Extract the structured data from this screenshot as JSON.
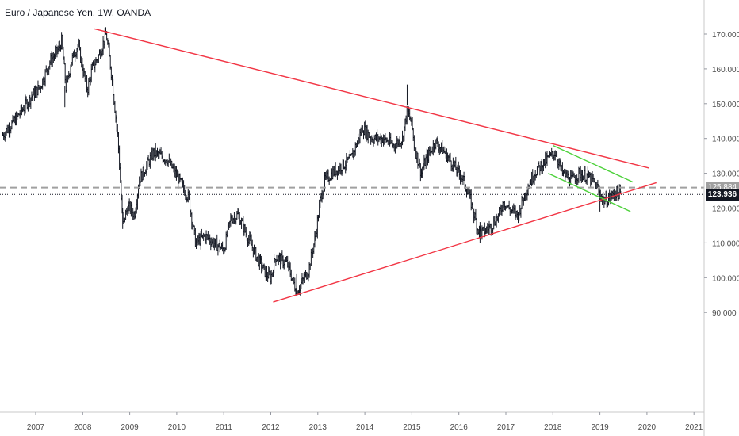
{
  "header": {
    "symbol_title": "Euro / Japanese Yen, 1W, OANDA"
  },
  "price_tags": {
    "dashed_level": "125.884",
    "last_price": "123.936"
  },
  "colors": {
    "trendline_red": "#f23645",
    "channel_green": "#4cd13a",
    "candles": "#131722",
    "dashed_level": "#a0a0a0",
    "last_price_bg": "#131722",
    "last_price_text": "#ffffff",
    "dashed_tag_bg": "#a0a0a0"
  },
  "chart_data": {
    "type": "line",
    "title": "Euro / Japanese Yen, 1W, OANDA",
    "xlabel": "",
    "ylabel": "",
    "x_ticks": [
      "2007",
      "2008",
      "2009",
      "2010",
      "2011",
      "2012",
      "2013",
      "2014",
      "2015",
      "2016",
      "2017",
      "2018",
      "2019",
      "2020",
      "2021"
    ],
    "y_ticks": [
      "90.000",
      "100.000",
      "110.000",
      "120.000",
      "130.000",
      "140.000",
      "150.000",
      "160.000",
      "170.000"
    ],
    "xlim": [
      2006.3,
      2021.2
    ],
    "ylim": [
      80.5,
      176.5
    ],
    "price_path": [
      [
        2006.3,
        141
      ],
      [
        2006.6,
        146
      ],
      [
        2006.9,
        152
      ],
      [
        2007.1,
        155
      ],
      [
        2007.3,
        162
      ],
      [
        2007.5,
        166
      ],
      [
        2007.55,
        168
      ],
      [
        2007.65,
        154
      ],
      [
        2007.75,
        162
      ],
      [
        2007.9,
        167
      ],
      [
        2008.0,
        160
      ],
      [
        2008.1,
        154
      ],
      [
        2008.2,
        160
      ],
      [
        2008.35,
        164
      ],
      [
        2008.5,
        170
      ],
      [
        2008.6,
        160
      ],
      [
        2008.75,
        140
      ],
      [
        2008.85,
        115
      ],
      [
        2008.95,
        120
      ],
      [
        2009.0,
        120
      ],
      [
        2009.1,
        118
      ],
      [
        2009.2,
        128
      ],
      [
        2009.5,
        136
      ],
      [
        2009.8,
        134
      ],
      [
        2010.05,
        128
      ],
      [
        2010.25,
        123
      ],
      [
        2010.4,
        110
      ],
      [
        2010.6,
        112
      ],
      [
        2010.8,
        110
      ],
      [
        2011.0,
        108
      ],
      [
        2011.15,
        117
      ],
      [
        2011.3,
        118
      ],
      [
        2011.5,
        112
      ],
      [
        2011.7,
        106
      ],
      [
        2011.9,
        101
      ],
      [
        2012.0,
        100
      ],
      [
        2012.1,
        106
      ],
      [
        2012.35,
        104
      ],
      [
        2012.55,
        96
      ],
      [
        2012.8,
        102
      ],
      [
        2012.95,
        112
      ],
      [
        2013.05,
        122
      ],
      [
        2013.15,
        128
      ],
      [
        2013.3,
        130
      ],
      [
        2013.5,
        132
      ],
      [
        2013.7,
        134
      ],
      [
        2013.95,
        143
      ],
      [
        2014.15,
        140
      ],
      [
        2014.4,
        140
      ],
      [
        2014.6,
        138
      ],
      [
        2014.8,
        140
      ],
      [
        2014.9,
        148
      ],
      [
        2015.0,
        144
      ],
      [
        2015.05,
        138
      ],
      [
        2015.2,
        130
      ],
      [
        2015.3,
        134
      ],
      [
        2015.5,
        139
      ],
      [
        2015.7,
        136
      ],
      [
        2015.9,
        132
      ],
      [
        2016.1,
        128
      ],
      [
        2016.25,
        122
      ],
      [
        2016.4,
        114
      ],
      [
        2016.5,
        113
      ],
      [
        2016.7,
        115
      ],
      [
        2016.85,
        118
      ],
      [
        2016.95,
        122
      ],
      [
        2017.05,
        120
      ],
      [
        2017.25,
        118
      ],
      [
        2017.4,
        124
      ],
      [
        2017.6,
        130
      ],
      [
        2017.8,
        133
      ],
      [
        2018.05,
        136
      ],
      [
        2018.2,
        130
      ],
      [
        2018.4,
        128
      ],
      [
        2018.55,
        130
      ],
      [
        2018.75,
        129
      ],
      [
        2018.9,
        127
      ],
      [
        2019.0,
        124
      ],
      [
        2019.1,
        122
      ],
      [
        2019.2,
        123
      ],
      [
        2019.35,
        124.5
      ],
      [
        2019.45,
        123.9
      ]
    ],
    "trendlines": [
      {
        "x": [
          2008.25,
          2020.05
        ],
        "y": [
          171.5,
          131.5
        ],
        "color": "#f23645"
      },
      {
        "x": [
          2012.05,
          2020.2
        ],
        "y": [
          93,
          127.3
        ],
        "color": "#f23645"
      },
      {
        "x": [
          2018.0,
          2019.7
        ],
        "y": [
          138,
          127.5
        ],
        "color": "#4cd13a"
      },
      {
        "x": [
          2017.9,
          2019.65
        ],
        "y": [
          130,
          119
        ],
        "color": "#4cd13a"
      }
    ],
    "horizontal_levels": [
      {
        "value": 125.884,
        "style": "dashed",
        "label": "125.884"
      },
      {
        "value": 123.936,
        "style": "dotted",
        "label": "123.936"
      }
    ],
    "grid": false,
    "legend": "none"
  }
}
